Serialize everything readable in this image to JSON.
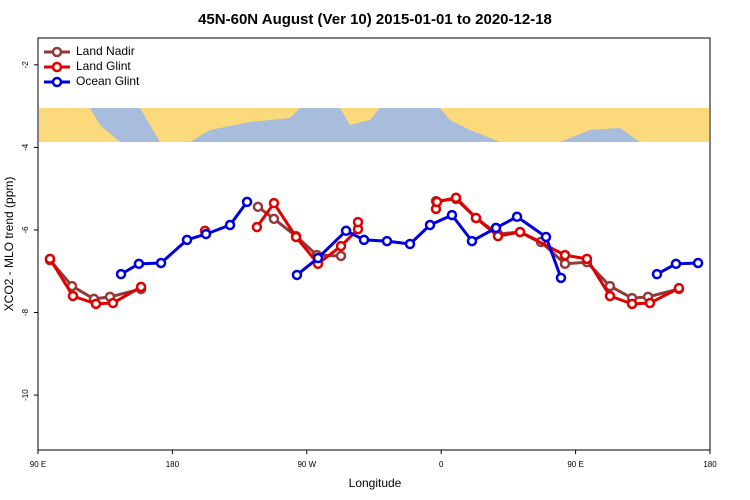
{
  "chart_data": {
    "type": "line",
    "title": "45N-60N August (Ver 10)   2015-01-01 to 2020-12-18",
    "xlabel": "Longitude",
    "ylabel": "XCO2 - MLO trend (ppm)",
    "xlim": [
      90,
      540
    ],
    "ylim": [
      -11.33,
      -1.35
    ],
    "xticks": [
      {
        "value": 90,
        "label": "90 E"
      },
      180,
      {
        "value": 270,
        "label": "90 W"
      },
      {
        "value": 360,
        "label": "0"
      },
      {
        "value": 450,
        "label": "90 E"
      },
      {
        "value": 540,
        "label": "180"
      }
    ],
    "yticks": [
      -2,
      -4,
      -6,
      -8,
      -10
    ],
    "legend": "top-left",
    "series": [
      {
        "name": "Land Nadir",
        "color": "#953a3a",
        "x": [
          98.0,
          112.8,
          127.5,
          138.2,
          159.0,
          null,
          237.3,
          248.0,
          262.8,
          276.8,
          292.9,
          null,
          356.5,
          369.9,
          383.3,
          398.0,
          412.8,
          426.8,
          442.9,
          457.6,
          473.0,
          487.8,
          498.5,
          519.2
        ],
        "values": [
          -6.73,
          -7.36,
          -7.67,
          -7.62,
          -7.43,
          null,
          -5.44,
          -5.73,
          -6.15,
          -6.61,
          -6.63,
          null,
          -5.3,
          -5.25,
          -5.71,
          -6.1,
          -6.05,
          -6.29,
          -6.82,
          -6.78,
          -7.36,
          -7.65,
          -7.62,
          -7.43
        ]
      },
      {
        "name": "Land Glint",
        "color": "#e00000",
        "x": [
          98.0,
          113.4,
          128.8,
          140.2,
          159.0,
          null,
          201.8,
          null,
          236.6,
          248.0,
          262.8,
          277.5,
          292.9,
          304.3,
          304.3,
          null,
          356.5,
          357.2,
          369.9,
          383.3,
          398.0,
          412.8,
          442.9,
          457.6,
          473.0,
          487.8,
          499.8,
          519.2
        ],
        "values": [
          -6.7,
          -7.6,
          -7.79,
          -7.77,
          -7.38,
          null,
          -6.02,
          null,
          -5.93,
          -5.35,
          -6.17,
          -6.82,
          -6.39,
          -5.98,
          -5.81,
          null,
          -5.49,
          -5.32,
          -5.22,
          -5.71,
          -6.15,
          -6.05,
          -6.61,
          -6.7,
          -7.6,
          -7.79,
          -7.77,
          -7.41
        ]
      },
      {
        "name": "Ocean Glint",
        "color": "#0000dd",
        "x": [
          145.6,
          157.6,
          172.4,
          189.8,
          202.5,
          218.6,
          230.0,
          null,
          263.4,
          277.5,
          296.3,
          308.3,
          323.7,
          339.1,
          352.5,
          367.2,
          380.6,
          396.7,
          410.8,
          430.2,
          440.2,
          null,
          504.5,
          517.2,
          532.0
        ],
        "values": [
          -7.07,
          -6.82,
          -6.8,
          -6.24,
          -6.1,
          -5.88,
          -5.32,
          null,
          -7.09,
          -6.68,
          -6.02,
          -6.24,
          -6.27,
          -6.34,
          -5.88,
          -5.64,
          -6.27,
          -5.95,
          -5.68,
          -6.17,
          -7.16,
          null,
          -7.07,
          -6.82,
          -6.8
        ]
      }
    ]
  }
}
